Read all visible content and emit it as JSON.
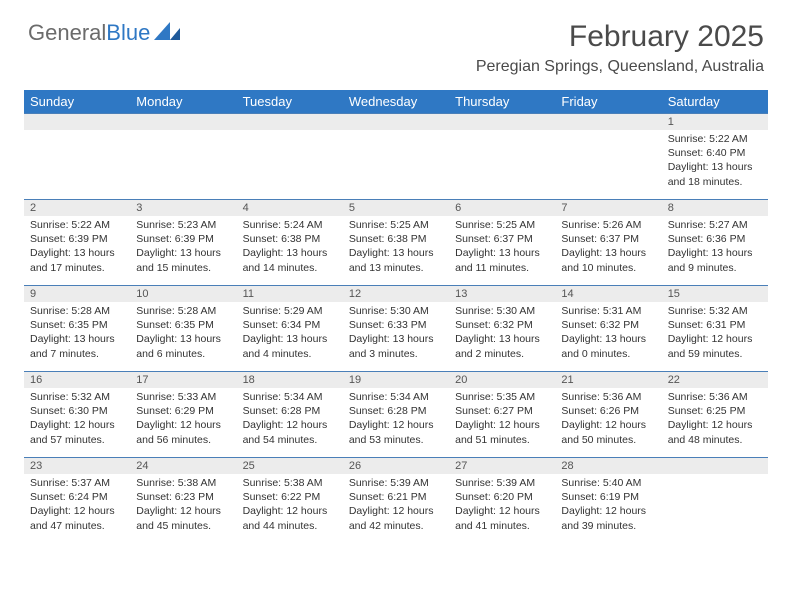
{
  "logo": {
    "text_gray": "General",
    "text_blue": "Blue",
    "icon_color": "#2f78c4"
  },
  "title": "February 2025",
  "location": "Peregian Springs, Queensland, Australia",
  "colors": {
    "header_bg": "#2f78c4",
    "header_text": "#ffffff",
    "daynum_bg": "#ececec",
    "row_border": "#4a7fb8",
    "text": "#333333"
  },
  "day_names": [
    "Sunday",
    "Monday",
    "Tuesday",
    "Wednesday",
    "Thursday",
    "Friday",
    "Saturday"
  ],
  "weeks": [
    [
      {
        "n": "",
        "lines": []
      },
      {
        "n": "",
        "lines": []
      },
      {
        "n": "",
        "lines": []
      },
      {
        "n": "",
        "lines": []
      },
      {
        "n": "",
        "lines": []
      },
      {
        "n": "",
        "lines": []
      },
      {
        "n": "1",
        "lines": [
          "Sunrise: 5:22 AM",
          "Sunset: 6:40 PM",
          "Daylight: 13 hours and 18 minutes."
        ]
      }
    ],
    [
      {
        "n": "2",
        "lines": [
          "Sunrise: 5:22 AM",
          "Sunset: 6:39 PM",
          "Daylight: 13 hours and 17 minutes."
        ]
      },
      {
        "n": "3",
        "lines": [
          "Sunrise: 5:23 AM",
          "Sunset: 6:39 PM",
          "Daylight: 13 hours and 15 minutes."
        ]
      },
      {
        "n": "4",
        "lines": [
          "Sunrise: 5:24 AM",
          "Sunset: 6:38 PM",
          "Daylight: 13 hours and 14 minutes."
        ]
      },
      {
        "n": "5",
        "lines": [
          "Sunrise: 5:25 AM",
          "Sunset: 6:38 PM",
          "Daylight: 13 hours and 13 minutes."
        ]
      },
      {
        "n": "6",
        "lines": [
          "Sunrise: 5:25 AM",
          "Sunset: 6:37 PM",
          "Daylight: 13 hours and 11 minutes."
        ]
      },
      {
        "n": "7",
        "lines": [
          "Sunrise: 5:26 AM",
          "Sunset: 6:37 PM",
          "Daylight: 13 hours and 10 minutes."
        ]
      },
      {
        "n": "8",
        "lines": [
          "Sunrise: 5:27 AM",
          "Sunset: 6:36 PM",
          "Daylight: 13 hours and 9 minutes."
        ]
      }
    ],
    [
      {
        "n": "9",
        "lines": [
          "Sunrise: 5:28 AM",
          "Sunset: 6:35 PM",
          "Daylight: 13 hours and 7 minutes."
        ]
      },
      {
        "n": "10",
        "lines": [
          "Sunrise: 5:28 AM",
          "Sunset: 6:35 PM",
          "Daylight: 13 hours and 6 minutes."
        ]
      },
      {
        "n": "11",
        "lines": [
          "Sunrise: 5:29 AM",
          "Sunset: 6:34 PM",
          "Daylight: 13 hours and 4 minutes."
        ]
      },
      {
        "n": "12",
        "lines": [
          "Sunrise: 5:30 AM",
          "Sunset: 6:33 PM",
          "Daylight: 13 hours and 3 minutes."
        ]
      },
      {
        "n": "13",
        "lines": [
          "Sunrise: 5:30 AM",
          "Sunset: 6:32 PM",
          "Daylight: 13 hours and 2 minutes."
        ]
      },
      {
        "n": "14",
        "lines": [
          "Sunrise: 5:31 AM",
          "Sunset: 6:32 PM",
          "Daylight: 13 hours and 0 minutes."
        ]
      },
      {
        "n": "15",
        "lines": [
          "Sunrise: 5:32 AM",
          "Sunset: 6:31 PM",
          "Daylight: 12 hours and 59 minutes."
        ]
      }
    ],
    [
      {
        "n": "16",
        "lines": [
          "Sunrise: 5:32 AM",
          "Sunset: 6:30 PM",
          "Daylight: 12 hours and 57 minutes."
        ]
      },
      {
        "n": "17",
        "lines": [
          "Sunrise: 5:33 AM",
          "Sunset: 6:29 PM",
          "Daylight: 12 hours and 56 minutes."
        ]
      },
      {
        "n": "18",
        "lines": [
          "Sunrise: 5:34 AM",
          "Sunset: 6:28 PM",
          "Daylight: 12 hours and 54 minutes."
        ]
      },
      {
        "n": "19",
        "lines": [
          "Sunrise: 5:34 AM",
          "Sunset: 6:28 PM",
          "Daylight: 12 hours and 53 minutes."
        ]
      },
      {
        "n": "20",
        "lines": [
          "Sunrise: 5:35 AM",
          "Sunset: 6:27 PM",
          "Daylight: 12 hours and 51 minutes."
        ]
      },
      {
        "n": "21",
        "lines": [
          "Sunrise: 5:36 AM",
          "Sunset: 6:26 PM",
          "Daylight: 12 hours and 50 minutes."
        ]
      },
      {
        "n": "22",
        "lines": [
          "Sunrise: 5:36 AM",
          "Sunset: 6:25 PM",
          "Daylight: 12 hours and 48 minutes."
        ]
      }
    ],
    [
      {
        "n": "23",
        "lines": [
          "Sunrise: 5:37 AM",
          "Sunset: 6:24 PM",
          "Daylight: 12 hours and 47 minutes."
        ]
      },
      {
        "n": "24",
        "lines": [
          "Sunrise: 5:38 AM",
          "Sunset: 6:23 PM",
          "Daylight: 12 hours and 45 minutes."
        ]
      },
      {
        "n": "25",
        "lines": [
          "Sunrise: 5:38 AM",
          "Sunset: 6:22 PM",
          "Daylight: 12 hours and 44 minutes."
        ]
      },
      {
        "n": "26",
        "lines": [
          "Sunrise: 5:39 AM",
          "Sunset: 6:21 PM",
          "Daylight: 12 hours and 42 minutes."
        ]
      },
      {
        "n": "27",
        "lines": [
          "Sunrise: 5:39 AM",
          "Sunset: 6:20 PM",
          "Daylight: 12 hours and 41 minutes."
        ]
      },
      {
        "n": "28",
        "lines": [
          "Sunrise: 5:40 AM",
          "Sunset: 6:19 PM",
          "Daylight: 12 hours and 39 minutes."
        ]
      },
      {
        "n": "",
        "lines": []
      }
    ]
  ]
}
